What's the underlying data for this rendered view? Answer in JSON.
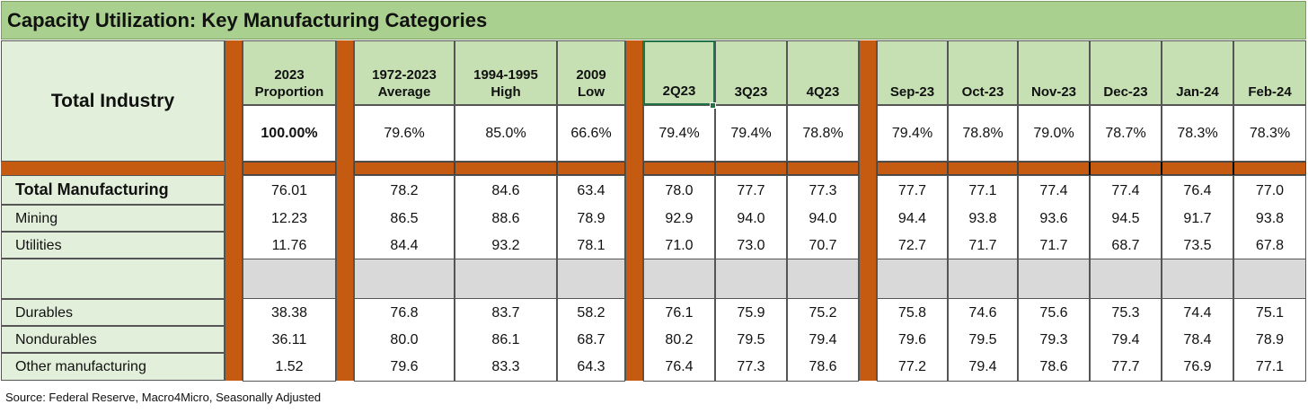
{
  "title": "Capacity Utilization: Key Manufacturing Categories",
  "total_industry_label": "Total Industry",
  "columns": [
    "2023\nProportion",
    "1972-2023\nAverage",
    "1994-1995\nHigh",
    "2009\nLow",
    "2Q23",
    "3Q23",
    "4Q23",
    "Sep-23",
    "Oct-23",
    "Nov-23",
    "Dec-23",
    "Jan-24",
    "Feb-24"
  ],
  "total_industry_values": [
    "100.00%",
    "79.6%",
    "85.0%",
    "66.6%",
    "79.4%",
    "79.4%",
    "78.8%",
    "79.4%",
    "78.8%",
    "79.0%",
    "78.7%",
    "78.3%",
    "78.3%"
  ],
  "rows": [
    {
      "label": "Total Manufacturing",
      "bold": true,
      "values": [
        "76.01",
        "78.2",
        "84.6",
        "63.4",
        "78.0",
        "77.7",
        "77.3",
        "77.7",
        "77.1",
        "77.4",
        "77.4",
        "76.4",
        "77.0"
      ]
    },
    {
      "label": "Mining",
      "bold": false,
      "values": [
        "12.23",
        "86.5",
        "88.6",
        "78.9",
        "92.9",
        "94.0",
        "94.0",
        "94.4",
        "93.8",
        "93.6",
        "94.5",
        "91.7",
        "93.8"
      ]
    },
    {
      "label": "Utilities",
      "bold": false,
      "values": [
        "11.76",
        "84.4",
        "93.2",
        "78.1",
        "71.0",
        "73.0",
        "70.7",
        "72.7",
        "71.7",
        "71.7",
        "68.7",
        "73.5",
        "67.8"
      ]
    },
    {
      "label": "Durables",
      "bold": false,
      "values": [
        "38.38",
        "76.8",
        "83.7",
        "58.2",
        "76.1",
        "75.9",
        "75.2",
        "75.8",
        "74.6",
        "75.6",
        "75.3",
        "74.4",
        "75.1"
      ]
    },
    {
      "label": "Nondurables",
      "bold": false,
      "values": [
        "36.11",
        "80.0",
        "86.1",
        "68.7",
        "80.2",
        "79.5",
        "79.4",
        "79.6",
        "79.5",
        "79.3",
        "79.4",
        "78.4",
        "78.9"
      ]
    },
    {
      "label": "Other manufacturing",
      "bold": false,
      "values": [
        "1.52",
        "79.6",
        "83.3",
        "64.3",
        "76.4",
        "77.3",
        "78.6",
        "77.2",
        "79.4",
        "78.6",
        "77.7",
        "76.9",
        "77.1"
      ]
    }
  ],
  "source": "Source: Federal Reserve, Macro4Micro, Seasonally Adjusted",
  "colors": {
    "title_bg": "#a9d08e",
    "header_bg": "#c6e0b4",
    "label_bg": "#e2efda",
    "separator": "#c55a11",
    "blank_band": "#d9d9d9"
  }
}
